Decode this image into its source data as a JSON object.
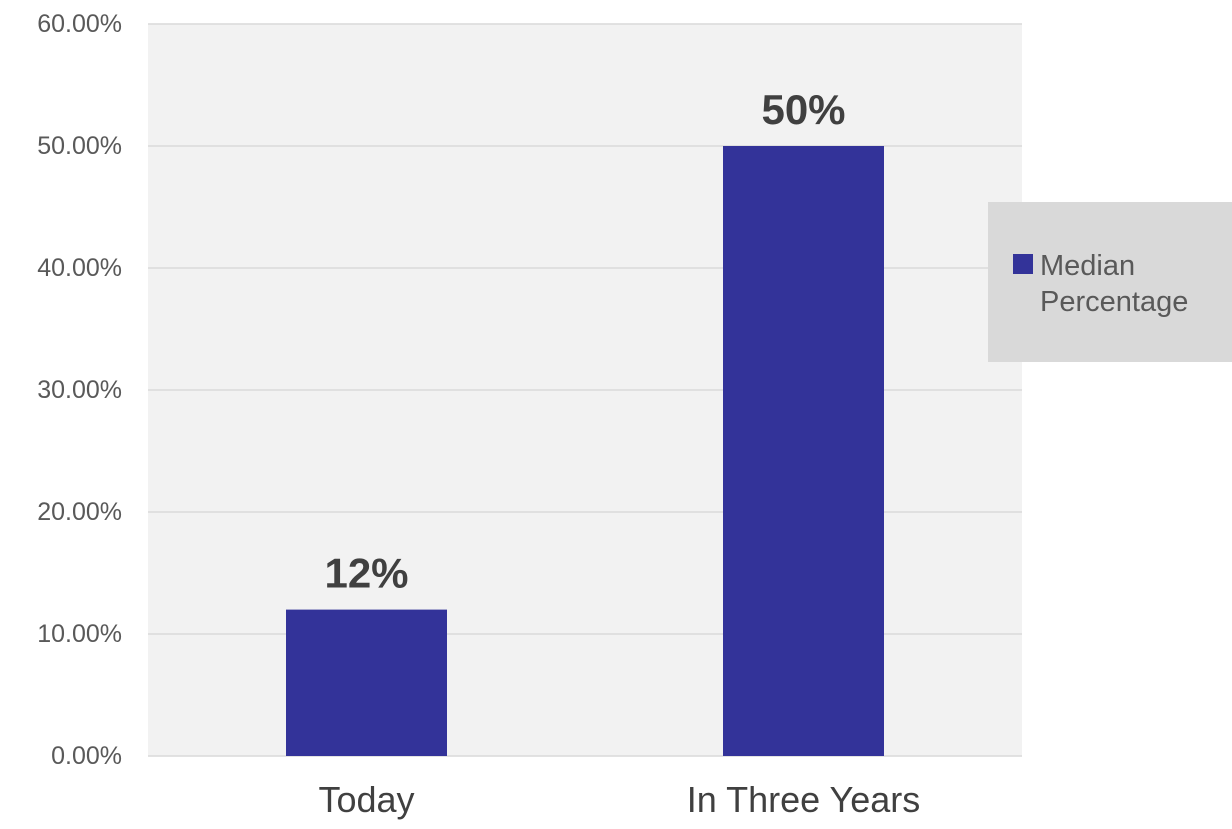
{
  "chart_data": {
    "type": "bar",
    "categories": [
      "Today",
      "In Three Years"
    ],
    "series": [
      {
        "name": "Median Percentage",
        "values": [
          0.12,
          0.5
        ],
        "data_labels": [
          "12%",
          "50%"
        ],
        "color": "#333399"
      }
    ],
    "ylim": [
      0,
      0.6
    ],
    "y_ticks": [
      0,
      0.1,
      0.2,
      0.3,
      0.4,
      0.5,
      0.6
    ],
    "y_tick_labels": [
      "0.00%",
      "10.00%",
      "20.00%",
      "30.00%",
      "40.00%",
      "50.00%",
      "60.00%"
    ],
    "grid": true,
    "legend": {
      "position": "right",
      "lines": [
        "Median",
        "Percentage"
      ]
    },
    "colors": {
      "plot_background": "#f2f2f2",
      "legend_background": "#d9d9d9",
      "gridline": "#d9d9d9"
    }
  }
}
